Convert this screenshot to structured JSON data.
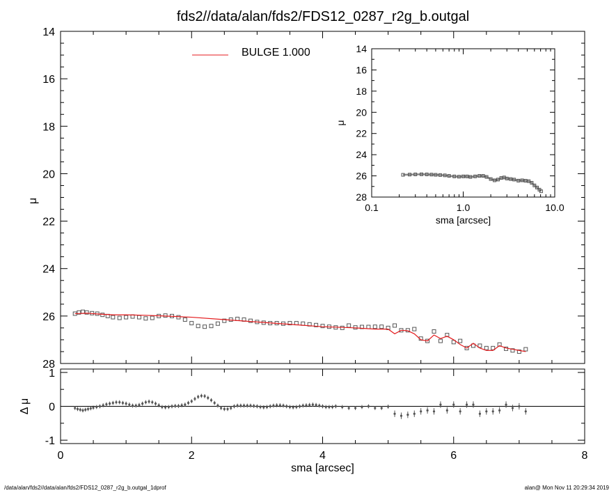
{
  "title": "fds2//data/alan/fds2/FDS12_0287_r2g_b.outgal",
  "footer_left": "/data/alan/fds2//data/alan/fds2/FDS12_0287_r2g_b.outgal_1dprof",
  "footer_right": "alan@  Mon Nov 11 20:29:34 2019",
  "colors": {
    "model": "#e41a1c",
    "data": "#555555",
    "axes": "#000000"
  },
  "chart_data": [
    {
      "id": "main",
      "type": "scatter",
      "ylabel": "μ",
      "xlim": [
        0,
        8
      ],
      "ylim": [
        28,
        14
      ],
      "y_inverted": true,
      "x_ticks_shared_label": true,
      "yticks": [
        "14",
        "16",
        "18",
        "20",
        "22",
        "24",
        "26",
        "28"
      ],
      "legend": {
        "label": "BULGE  1.000",
        "placement": "top-center"
      },
      "series": [
        {
          "marker": "open-square",
          "x": [
            0.22,
            0.28,
            0.34,
            0.4,
            0.48,
            0.56,
            0.64,
            0.72,
            0.8,
            0.9,
            1.0,
            1.1,
            1.2,
            1.3,
            1.4,
            1.5,
            1.6,
            1.7,
            1.8,
            1.9,
            2.0,
            2.1,
            2.2,
            2.3,
            2.4,
            2.5,
            2.6,
            2.7,
            2.8,
            2.9,
            3.0,
            3.1,
            3.2,
            3.3,
            3.4,
            3.5,
            3.6,
            3.7,
            3.8,
            3.9,
            4.0,
            4.1,
            4.2,
            4.3,
            4.4,
            4.5,
            4.6,
            4.7,
            4.8,
            4.9,
            5.0,
            5.1,
            5.2,
            5.3,
            5.4,
            5.5,
            5.6,
            5.7,
            5.8,
            5.9,
            6.0,
            6.1,
            6.2,
            6.3,
            6.4,
            6.5,
            6.6,
            6.7,
            6.8,
            6.9,
            7.0,
            7.1
          ],
          "y": [
            25.9,
            25.85,
            25.82,
            25.85,
            25.88,
            25.9,
            25.95,
            26.0,
            26.05,
            26.08,
            26.05,
            26.02,
            26.05,
            26.1,
            26.08,
            26.0,
            25.98,
            26.0,
            26.05,
            26.15,
            26.3,
            26.42,
            26.45,
            26.42,
            26.32,
            26.2,
            26.15,
            26.12,
            26.15,
            26.2,
            26.25,
            26.28,
            26.3,
            26.3,
            26.32,
            26.3,
            26.3,
            26.32,
            26.35,
            26.38,
            26.42,
            26.45,
            26.48,
            26.5,
            26.4,
            26.48,
            26.46,
            26.46,
            26.45,
            26.45,
            26.5,
            26.4,
            26.6,
            26.6,
            26.55,
            26.95,
            27.05,
            26.65,
            27.05,
            26.8,
            27.1,
            27.05,
            27.35,
            27.25,
            27.25,
            27.35,
            27.35,
            27.2,
            27.38,
            27.45,
            27.5,
            27.4
          ]
        },
        {
          "name": "BULGE  1.000",
          "marker": "line",
          "x": [
            0.22,
            0.4,
            0.6,
            0.8,
            1.0,
            1.3,
            1.6,
            2.0,
            2.5,
            3.0,
            3.5,
            4.0,
            4.5,
            4.8,
            5.0,
            5.1,
            5.2,
            5.3,
            5.4,
            5.5,
            5.6,
            5.7,
            5.8,
            5.9,
            6.0,
            6.1,
            6.2,
            6.3,
            6.4,
            6.5,
            6.6,
            6.7,
            6.8,
            6.9,
            7.0,
            7.1
          ],
          "y": [
            25.9,
            25.88,
            25.92,
            25.95,
            25.95,
            25.97,
            26.0,
            26.05,
            26.15,
            26.25,
            26.35,
            26.45,
            26.5,
            26.55,
            26.55,
            26.75,
            26.6,
            26.62,
            26.75,
            27.0,
            27.05,
            26.8,
            26.95,
            26.85,
            27.0,
            27.2,
            27.35,
            27.15,
            27.35,
            27.45,
            27.45,
            27.25,
            27.35,
            27.4,
            27.45,
            27.5
          ]
        }
      ]
    },
    {
      "id": "inset",
      "type": "scatter",
      "xlabel": "sma [arcsec]",
      "ylabel": "μ",
      "x_scale": "log",
      "xlim": [
        0.1,
        10.0
      ],
      "ylim": [
        28,
        14
      ],
      "y_inverted": true,
      "xticks": [
        "0.1",
        "1.0",
        "10.0"
      ],
      "yticks": [
        "14",
        "16",
        "18",
        "20",
        "22",
        "24",
        "26",
        "28"
      ],
      "series": [
        {
          "marker": "open-square",
          "x": [
            0.22,
            0.26,
            0.3,
            0.35,
            0.4,
            0.45,
            0.5,
            0.56,
            0.63,
            0.7,
            0.8,
            0.9,
            1.0,
            1.1,
            1.2,
            1.35,
            1.5,
            1.65,
            1.8,
            2.0,
            2.2,
            2.4,
            2.6,
            2.8,
            3.0,
            3.3,
            3.6,
            4.0,
            4.4,
            4.8,
            5.2,
            5.6,
            6.0,
            6.4,
            6.8,
            7.1
          ],
          "y": [
            25.9,
            25.88,
            25.86,
            25.85,
            25.86,
            25.88,
            25.9,
            25.92,
            25.95,
            26.0,
            26.05,
            26.08,
            26.05,
            26.05,
            26.1,
            26.05,
            26.0,
            26.0,
            26.1,
            26.3,
            26.42,
            26.35,
            26.2,
            26.15,
            26.25,
            26.3,
            26.35,
            26.45,
            26.42,
            26.46,
            26.5,
            26.65,
            26.9,
            27.1,
            27.3,
            27.45
          ]
        }
      ]
    },
    {
      "id": "residual",
      "type": "scatter",
      "xlabel": "sma [arcsec]",
      "ylabel": "Δ μ",
      "xlim": [
        0,
        8
      ],
      "ylim": [
        -1.1,
        1.1
      ],
      "xticks": [
        "0",
        "2",
        "4",
        "6",
        "8"
      ],
      "yticks": [
        "-1",
        "0",
        "1"
      ],
      "series": [
        {
          "marker": "point-errorbar",
          "x": [
            0.22,
            0.26,
            0.3,
            0.34,
            0.38,
            0.42,
            0.46,
            0.5,
            0.55,
            0.6,
            0.65,
            0.7,
            0.75,
            0.8,
            0.85,
            0.9,
            0.95,
            1.0,
            1.05,
            1.1,
            1.15,
            1.2,
            1.25,
            1.3,
            1.35,
            1.4,
            1.45,
            1.5,
            1.55,
            1.6,
            1.65,
            1.7,
            1.75,
            1.8,
            1.85,
            1.9,
            1.95,
            2.0,
            2.05,
            2.1,
            2.15,
            2.2,
            2.25,
            2.3,
            2.35,
            2.4,
            2.45,
            2.5,
            2.55,
            2.6,
            2.65,
            2.7,
            2.75,
            2.8,
            2.85,
            2.9,
            2.95,
            3.0,
            3.05,
            3.1,
            3.15,
            3.2,
            3.25,
            3.3,
            3.35,
            3.4,
            3.45,
            3.5,
            3.55,
            3.6,
            3.65,
            3.7,
            3.75,
            3.8,
            3.85,
            3.9,
            3.95,
            4.0,
            4.05,
            4.1,
            4.15,
            4.2,
            4.3,
            4.4,
            4.5,
            4.6,
            4.7,
            4.8,
            4.9,
            5.0,
            5.1,
            5.2,
            5.3,
            5.4,
            5.5,
            5.6,
            5.7,
            5.8,
            5.9,
            6.0,
            6.1,
            6.2,
            6.3,
            6.4,
            6.5,
            6.6,
            6.7,
            6.8,
            6.9,
            7.0,
            7.1
          ],
          "y": [
            -0.05,
            -0.08,
            -0.1,
            -0.12,
            -0.1,
            -0.08,
            -0.06,
            -0.04,
            -0.02,
            0.0,
            0.03,
            0.06,
            0.08,
            0.1,
            0.12,
            0.12,
            0.1,
            0.08,
            0.05,
            0.02,
            0.02,
            0.04,
            0.08,
            0.12,
            0.14,
            0.12,
            0.08,
            0.03,
            -0.02,
            -0.03,
            -0.02,
            0.0,
            0.01,
            0.01,
            0.03,
            0.05,
            0.1,
            0.15,
            0.22,
            0.28,
            0.31,
            0.3,
            0.25,
            0.18,
            0.1,
            0.02,
            -0.05,
            -0.08,
            -0.08,
            -0.05,
            0.0,
            0.02,
            0.02,
            0.02,
            0.02,
            0.02,
            0.01,
            0.0,
            -0.02,
            -0.03,
            -0.02,
            0.0,
            0.02,
            0.03,
            0.03,
            0.02,
            0.0,
            -0.02,
            -0.03,
            -0.02,
            0.0,
            0.02,
            0.03,
            0.04,
            0.05,
            0.04,
            0.02,
            0.0,
            -0.02,
            -0.02,
            -0.02,
            0.0,
            -0.02,
            -0.05,
            -0.05,
            -0.02,
            0.0,
            -0.05,
            -0.05,
            -0.01,
            -0.22,
            -0.28,
            -0.25,
            -0.22,
            -0.15,
            -0.12,
            -0.15,
            0.05,
            -0.12,
            0.05,
            -0.15,
            0.05,
            0.05,
            -0.22,
            -0.15,
            -0.15,
            -0.12,
            0.05,
            -0.05,
            0.0,
            -0.15
          ],
          "err": 0.06
        }
      ]
    }
  ]
}
